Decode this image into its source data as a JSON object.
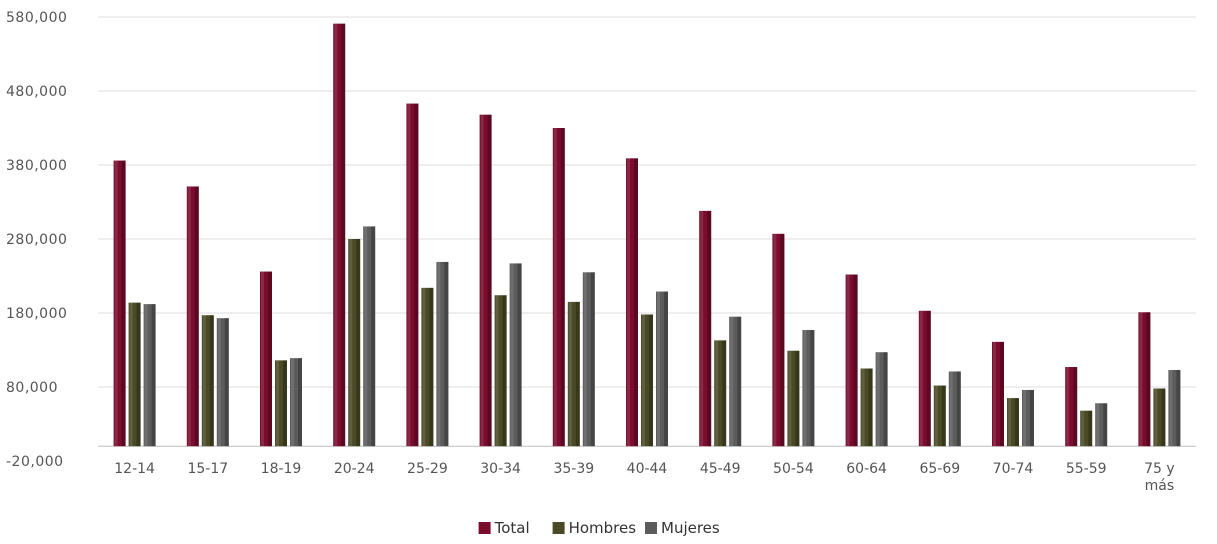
{
  "chart_data": {
    "type": "bar",
    "categories": [
      "12-14",
      "15-17",
      "18-19",
      "20-24",
      "25-29",
      "30-34",
      "35-39",
      "40-44",
      "45-49",
      "50-54",
      "60-64",
      "65-69",
      "70-74",
      "55-59",
      "75 y\nmás"
    ],
    "series": [
      {
        "name": "Total",
        "color": "#7a0c2e",
        "values": [
          386000,
          351000,
          236000,
          571000,
          463000,
          448000,
          430000,
          389000,
          318000,
          287000,
          232000,
          183000,
          141000,
          107000,
          181000
        ]
      },
      {
        "name": "Hombres",
        "color": "#4a4a26",
        "values": [
          194000,
          177000,
          116000,
          280000,
          214000,
          204000,
          195000,
          178000,
          143000,
          129000,
          105000,
          82000,
          65000,
          48000,
          78000
        ]
      },
      {
        "name": "Mujeres",
        "color": "#5c5c5c",
        "values": [
          192000,
          173000,
          119000,
          297000,
          249000,
          247000,
          235000,
          209000,
          175000,
          157000,
          127000,
          101000,
          76000,
          58000,
          103000
        ]
      }
    ],
    "yticks": [
      "-20,000",
      "80,000",
      "180,000",
      "280,000",
      "380,000",
      "480,000",
      "580,000"
    ],
    "ylim": [
      -20000,
      580000
    ],
    "grid": true,
    "legend": "bottom-center"
  }
}
